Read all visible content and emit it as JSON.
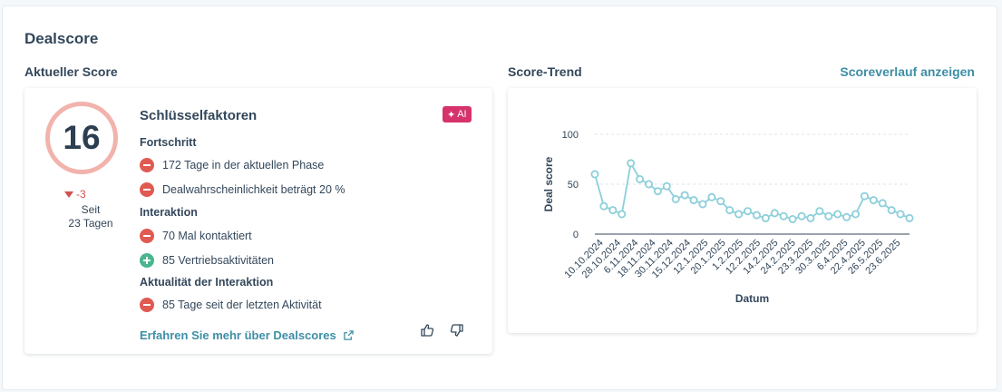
{
  "title": "Dealscore",
  "current_score_label": "Aktueller Score",
  "trend_label": "Score-Trend",
  "history_link": "Scoreverlauf anzeigen",
  "score": {
    "value": "16",
    "delta": "-3",
    "since": "Seit",
    "since_days": "23 Tagen"
  },
  "key_factors": {
    "title": "Schlüsselfaktoren",
    "ai_badge": "AI",
    "groups": [
      {
        "label": "Fortschritt",
        "items": [
          {
            "text": "172 Tage in der aktuellen Phase",
            "type": "negative"
          },
          {
            "text": "Dealwahrscheinlichkeit beträgt 20 %",
            "type": "negative"
          }
        ]
      },
      {
        "label": "Interaktion",
        "items": [
          {
            "text": "70 Mal kontaktiert",
            "type": "negative"
          },
          {
            "text": "85 Vertriebsaktivitäten",
            "type": "positive"
          }
        ]
      },
      {
        "label": "Aktualität der Interaktion",
        "items": [
          {
            "text": "85 Tage seit der letzten Aktivität",
            "type": "negative"
          }
        ]
      }
    ],
    "learn_more": "Erfahren Sie mehr über Dealscores"
  },
  "icons": {
    "ai": "sparkle-icon",
    "external": "external-link-icon",
    "thumbs_up": "thumbs-up-icon",
    "thumbs_down": "thumbs-down-icon",
    "negative": "minus-circle-icon",
    "positive": "plus-circle-icon",
    "delta": "triangle-down-icon"
  },
  "colors": {
    "accent": "#3e8ea6",
    "negative": "#e05a52",
    "positive": "#4ab58e",
    "ring": "#f1b3ac",
    "ai_badge": "#d6336c",
    "line": "#8ccfda"
  },
  "chart_data": {
    "type": "line",
    "xlabel": "Datum",
    "ylabel": "Deal score",
    "ylim": [
      0,
      100
    ],
    "yticks": [
      0,
      50,
      100
    ],
    "grid": true,
    "x_tick_labels": [
      "10.10.2024",
      "28.10.2024",
      "6.11.2024",
      "18.11.2024",
      "30.11.2024",
      "15.12.2024",
      "12.1.2025",
      "20.1.2025",
      "1.2.2025",
      "12.2.2025",
      "14.2.2025",
      "24.2.2025",
      "23.3.2025",
      "30.3.2025",
      "6.4.2025",
      "22.4.2025",
      "26.5.2025",
      "23.6.2025"
    ],
    "values": [
      60,
      28,
      24,
      20,
      71,
      55,
      50,
      43,
      48,
      35,
      39,
      34,
      30,
      37,
      33,
      24,
      20,
      23,
      19,
      16,
      21,
      18,
      15,
      18,
      16,
      23,
      18,
      20,
      17,
      20,
      38,
      34,
      31,
      24,
      20,
      16
    ]
  }
}
